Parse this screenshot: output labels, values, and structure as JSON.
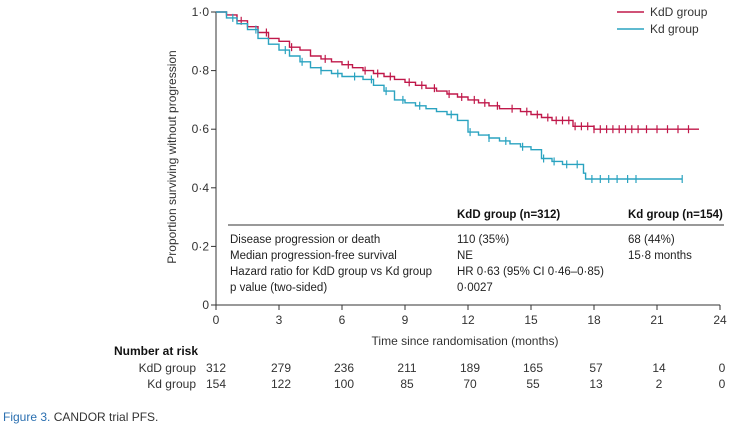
{
  "chart_data": {
    "type": "line",
    "subtype": "kaplan-meier",
    "xlabel": "Time since randomisation (months)",
    "ylabel": "Proportion surviving without progression",
    "xlim": [
      0,
      24
    ],
    "ylim": [
      0,
      1
    ],
    "x_ticks": [
      "0",
      "3",
      "6",
      "9",
      "12",
      "15",
      "18",
      "21",
      "24"
    ],
    "y_ticks": [
      "0",
      "0·2",
      "0·4",
      "0·6",
      "0·8",
      "1·0"
    ],
    "series": [
      {
        "name": "KdD group",
        "color": "#c0184a",
        "x": [
          0,
          0.5,
          1.0,
          1.5,
          2.0,
          2.5,
          3.0,
          3.5,
          4.0,
          4.5,
          5.0,
          5.5,
          6.0,
          6.5,
          7.0,
          7.5,
          8.0,
          8.5,
          9.0,
          9.5,
          10.0,
          10.5,
          11.0,
          11.5,
          12.0,
          12.5,
          13.0,
          13.5,
          14.0,
          14.5,
          15.0,
          15.5,
          16.0,
          17.0,
          18.0,
          23.0
        ],
        "y": [
          1.0,
          0.99,
          0.97,
          0.95,
          0.93,
          0.91,
          0.9,
          0.88,
          0.87,
          0.85,
          0.84,
          0.83,
          0.82,
          0.81,
          0.8,
          0.79,
          0.78,
          0.77,
          0.76,
          0.75,
          0.74,
          0.73,
          0.72,
          0.71,
          0.7,
          0.69,
          0.68,
          0.67,
          0.67,
          0.66,
          0.65,
          0.64,
          0.63,
          0.61,
          0.6,
          0.6
        ],
        "censor_x": [
          1.2,
          2.4,
          3.6,
          5.2,
          6.3,
          7.1,
          7.7,
          8.3,
          9.2,
          9.8,
          10.4,
          11.1,
          11.7,
          12.3,
          12.8,
          13.4,
          14.1,
          14.8,
          15.3,
          15.8,
          16.2,
          16.5,
          16.8,
          17.1,
          17.4,
          17.7,
          18.0,
          18.3,
          18.6,
          18.9,
          19.2,
          19.5,
          19.8,
          20.1,
          20.5,
          21.0,
          21.5,
          22.0,
          22.5
        ]
      },
      {
        "name": "Kd group",
        "color": "#2aa3c0",
        "x": [
          0,
          0.5,
          1.0,
          1.5,
          2.0,
          2.5,
          3.0,
          3.5,
          4.0,
          4.5,
          5.0,
          5.5,
          6.0,
          6.5,
          7.0,
          7.5,
          8.0,
          8.5,
          9.0,
          9.5,
          10.0,
          10.5,
          11.0,
          11.5,
          12.0,
          12.5,
          13.0,
          13.5,
          14.0,
          14.5,
          15.0,
          15.5,
          16.0,
          16.5,
          17.0,
          17.5,
          17.6,
          22.2
        ],
        "y": [
          1.0,
          0.98,
          0.96,
          0.94,
          0.91,
          0.89,
          0.87,
          0.85,
          0.83,
          0.81,
          0.8,
          0.79,
          0.78,
          0.78,
          0.77,
          0.75,
          0.73,
          0.7,
          0.69,
          0.68,
          0.67,
          0.66,
          0.65,
          0.63,
          0.59,
          0.58,
          0.57,
          0.56,
          0.55,
          0.54,
          0.53,
          0.5,
          0.49,
          0.48,
          0.48,
          0.45,
          0.43,
          0.43
        ],
        "censor_x": [
          0.8,
          1.9,
          3.3,
          4.1,
          5.0,
          5.8,
          6.6,
          7.4,
          8.1,
          8.9,
          9.7,
          11.2,
          12.1,
          13.0,
          13.8,
          14.6,
          15.6,
          16.1,
          16.7,
          17.2,
          17.9,
          18.3,
          18.7,
          19.1,
          19.6,
          20.0,
          22.2
        ]
      }
    ],
    "legend": {
      "position": "top-right",
      "entries": [
        "KdD group",
        "Kd group"
      ]
    },
    "annotation_table": {
      "header": [
        "",
        "KdD group (n=312)",
        "Kd group (n=154)"
      ],
      "rows": [
        [
          "Disease progression or death",
          "110 (35%)",
          "68 (44%)"
        ],
        [
          "Median progression-free survival",
          "NE",
          "15·8 months"
        ],
        [
          "Hazard ratio for KdD group vs Kd group",
          "HR 0·63 (95% CI 0·46–0·85)",
          ""
        ],
        [
          "p value (two-sided)",
          "0·0027",
          ""
        ]
      ]
    },
    "number_at_risk": {
      "title": "Number at risk",
      "rows": [
        {
          "label": "KdD group",
          "values": [
            "312",
            "279",
            "236",
            "211",
            "189",
            "165",
            "57",
            "14",
            "0"
          ]
        },
        {
          "label": "Kd group",
          "values": [
            "154",
            "122",
            "100",
            "85",
            "70",
            "55",
            "13",
            "2",
            "0"
          ]
        }
      ]
    }
  },
  "caption": {
    "label": "Figure 3.",
    "text": " CANDOR trial PFS."
  }
}
